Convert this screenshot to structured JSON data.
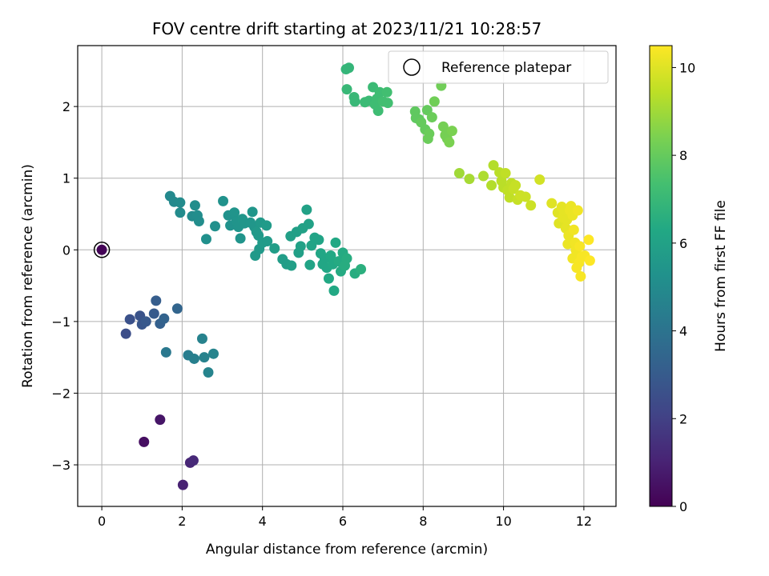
{
  "chart_data": {
    "type": "scatter",
    "title": "FOV centre drift starting at 2023/11/21 10:28:57",
    "xlabel": "Angular distance from reference (arcmin)",
    "ylabel": "Rotation from reference (arcmin)",
    "colorbar_label": "Hours from first FF file",
    "xlim": [
      -0.6,
      12.8
    ],
    "ylim": [
      -3.58,
      2.85
    ],
    "xticks": [
      0,
      2,
      4,
      6,
      8,
      10,
      12
    ],
    "yticks": [
      -3,
      -2,
      -1,
      0,
      1,
      2
    ],
    "colorbar_range": [
      0,
      10.5
    ],
    "colorbar_ticks": [
      0,
      2,
      4,
      6,
      8,
      10
    ],
    "colormap": "viridis",
    "grid": true,
    "legend": {
      "placement": "top-right",
      "entries": [
        "Reference platepar"
      ]
    },
    "reference_point": {
      "x": 0,
      "y": 0
    },
    "points": [
      {
        "x": 0.0,
        "y": 0.0,
        "c": 0.1
      },
      {
        "x": 1.05,
        "y": -2.68,
        "c": 0.4
      },
      {
        "x": 1.45,
        "y": -2.37,
        "c": 0.6
      },
      {
        "x": 2.02,
        "y": -3.28,
        "c": 1.0
      },
      {
        "x": 2.2,
        "y": -2.97,
        "c": 1.1
      },
      {
        "x": 2.28,
        "y": -2.94,
        "c": 1.2
      },
      {
        "x": 0.6,
        "y": -1.17,
        "c": 2.5
      },
      {
        "x": 0.7,
        "y": -0.97,
        "c": 2.6
      },
      {
        "x": 0.95,
        "y": -0.92,
        "c": 2.7
      },
      {
        "x": 1.0,
        "y": -1.04,
        "c": 2.8
      },
      {
        "x": 1.1,
        "y": -1.0,
        "c": 2.9
      },
      {
        "x": 1.3,
        "y": -0.89,
        "c": 3.0
      },
      {
        "x": 1.35,
        "y": -0.71,
        "c": 3.1
      },
      {
        "x": 1.45,
        "y": -1.03,
        "c": 3.2
      },
      {
        "x": 1.55,
        "y": -0.96,
        "c": 3.3
      },
      {
        "x": 1.88,
        "y": -0.82,
        "c": 3.4
      },
      {
        "x": 1.6,
        "y": -1.43,
        "c": 4.2
      },
      {
        "x": 2.15,
        "y": -1.47,
        "c": 4.4
      },
      {
        "x": 2.3,
        "y": -1.52,
        "c": 4.5
      },
      {
        "x": 2.5,
        "y": -1.24,
        "c": 4.6
      },
      {
        "x": 2.55,
        "y": -1.5,
        "c": 4.6
      },
      {
        "x": 2.65,
        "y": -1.71,
        "c": 4.7
      },
      {
        "x": 2.78,
        "y": -1.45,
        "c": 4.7
      },
      {
        "x": 1.7,
        "y": 0.75,
        "c": 4.9
      },
      {
        "x": 1.8,
        "y": 0.67,
        "c": 4.9
      },
      {
        "x": 1.95,
        "y": 0.66,
        "c": 5.0
      },
      {
        "x": 1.95,
        "y": 0.52,
        "c": 5.0
      },
      {
        "x": 2.25,
        "y": 0.47,
        "c": 5.0
      },
      {
        "x": 2.32,
        "y": 0.62,
        "c": 5.1
      },
      {
        "x": 2.38,
        "y": 0.48,
        "c": 5.1
      },
      {
        "x": 2.42,
        "y": 0.4,
        "c": 5.1
      },
      {
        "x": 2.6,
        "y": 0.15,
        "c": 5.2
      },
      {
        "x": 2.82,
        "y": 0.33,
        "c": 5.2
      },
      {
        "x": 3.02,
        "y": 0.68,
        "c": 5.3
      },
      {
        "x": 3.15,
        "y": 0.48,
        "c": 5.3
      },
      {
        "x": 3.2,
        "y": 0.34,
        "c": 5.3
      },
      {
        "x": 3.3,
        "y": 0.52,
        "c": 5.4
      },
      {
        "x": 3.35,
        "y": 0.4,
        "c": 5.4
      },
      {
        "x": 3.4,
        "y": 0.32,
        "c": 5.4
      },
      {
        "x": 3.45,
        "y": 0.16,
        "c": 5.4
      },
      {
        "x": 3.5,
        "y": 0.43,
        "c": 5.5
      },
      {
        "x": 3.55,
        "y": 0.37,
        "c": 5.5
      },
      {
        "x": 3.7,
        "y": 0.38,
        "c": 5.5
      },
      {
        "x": 3.75,
        "y": 0.53,
        "c": 5.5
      },
      {
        "x": 3.8,
        "y": 0.32,
        "c": 5.5
      },
      {
        "x": 3.85,
        "y": 0.25,
        "c": 5.6
      },
      {
        "x": 3.9,
        "y": 0.2,
        "c": 5.6
      },
      {
        "x": 3.95,
        "y": 0.38,
        "c": 5.6
      },
      {
        "x": 3.82,
        "y": -0.08,
        "c": 5.6
      },
      {
        "x": 3.92,
        "y": 0.01,
        "c": 5.6
      },
      {
        "x": 4.0,
        "y": 0.1,
        "c": 5.7
      },
      {
        "x": 4.1,
        "y": 0.34,
        "c": 5.7
      },
      {
        "x": 4.12,
        "y": 0.12,
        "c": 5.7
      },
      {
        "x": 4.3,
        "y": 0.02,
        "c": 5.8
      },
      {
        "x": 4.5,
        "y": -0.13,
        "c": 5.8
      },
      {
        "x": 4.6,
        "y": -0.2,
        "c": 5.8
      },
      {
        "x": 4.72,
        "y": -0.22,
        "c": 5.9
      },
      {
        "x": 4.7,
        "y": 0.19,
        "c": 5.9
      },
      {
        "x": 4.85,
        "y": 0.25,
        "c": 5.9
      },
      {
        "x": 4.9,
        "y": -0.04,
        "c": 5.9
      },
      {
        "x": 4.95,
        "y": 0.05,
        "c": 6.0
      },
      {
        "x": 5.0,
        "y": 0.3,
        "c": 6.0
      },
      {
        "x": 5.1,
        "y": 0.56,
        "c": 6.0
      },
      {
        "x": 5.15,
        "y": 0.36,
        "c": 6.0
      },
      {
        "x": 5.18,
        "y": -0.21,
        "c": 6.1
      },
      {
        "x": 5.22,
        "y": 0.06,
        "c": 6.1
      },
      {
        "x": 5.3,
        "y": 0.17,
        "c": 6.1
      },
      {
        "x": 5.4,
        "y": 0.14,
        "c": 6.1
      },
      {
        "x": 5.45,
        "y": -0.05,
        "c": 6.2
      },
      {
        "x": 5.5,
        "y": -0.2,
        "c": 6.2
      },
      {
        "x": 5.55,
        "y": -0.12,
        "c": 6.2
      },
      {
        "x": 5.6,
        "y": -0.25,
        "c": 6.2
      },
      {
        "x": 5.65,
        "y": -0.4,
        "c": 6.3
      },
      {
        "x": 5.7,
        "y": -0.08,
        "c": 6.3
      },
      {
        "x": 5.75,
        "y": -0.2,
        "c": 6.3
      },
      {
        "x": 5.78,
        "y": -0.57,
        "c": 6.3
      },
      {
        "x": 5.82,
        "y": 0.1,
        "c": 6.3
      },
      {
        "x": 5.9,
        "y": -0.16,
        "c": 6.4
      },
      {
        "x": 5.95,
        "y": -0.3,
        "c": 6.4
      },
      {
        "x": 6.0,
        "y": -0.04,
        "c": 6.4
      },
      {
        "x": 6.05,
        "y": -0.22,
        "c": 6.5
      },
      {
        "x": 6.1,
        "y": -0.12,
        "c": 6.5
      },
      {
        "x": 6.3,
        "y": -0.33,
        "c": 6.5
      },
      {
        "x": 6.45,
        "y": -0.27,
        "c": 6.6
      },
      {
        "x": 6.08,
        "y": 2.52,
        "c": 6.9
      },
      {
        "x": 6.15,
        "y": 2.54,
        "c": 6.9
      },
      {
        "x": 6.1,
        "y": 2.24,
        "c": 7.0
      },
      {
        "x": 6.28,
        "y": 2.13,
        "c": 7.0
      },
      {
        "x": 6.3,
        "y": 2.07,
        "c": 7.0
      },
      {
        "x": 6.55,
        "y": 2.06,
        "c": 7.1
      },
      {
        "x": 6.65,
        "y": 2.08,
        "c": 7.1
      },
      {
        "x": 6.75,
        "y": 2.27,
        "c": 7.1
      },
      {
        "x": 6.8,
        "y": 2.03,
        "c": 7.2
      },
      {
        "x": 6.85,
        "y": 2.11,
        "c": 7.2
      },
      {
        "x": 6.88,
        "y": 1.94,
        "c": 7.2
      },
      {
        "x": 6.92,
        "y": 2.2,
        "c": 7.2
      },
      {
        "x": 7.0,
        "y": 2.07,
        "c": 7.3
      },
      {
        "x": 7.1,
        "y": 2.2,
        "c": 7.3
      },
      {
        "x": 7.12,
        "y": 2.05,
        "c": 7.3
      },
      {
        "x": 7.8,
        "y": 1.93,
        "c": 7.9
      },
      {
        "x": 7.82,
        "y": 1.84,
        "c": 7.9
      },
      {
        "x": 7.9,
        "y": 1.82,
        "c": 7.9
      },
      {
        "x": 7.95,
        "y": 1.78,
        "c": 8.0
      },
      {
        "x": 8.05,
        "y": 1.68,
        "c": 8.0
      },
      {
        "x": 8.1,
        "y": 1.95,
        "c": 8.0
      },
      {
        "x": 8.12,
        "y": 1.55,
        "c": 8.1
      },
      {
        "x": 8.15,
        "y": 1.62,
        "c": 8.1
      },
      {
        "x": 8.22,
        "y": 1.85,
        "c": 8.1
      },
      {
        "x": 8.28,
        "y": 2.07,
        "c": 8.2
      },
      {
        "x": 8.45,
        "y": 2.29,
        "c": 8.2
      },
      {
        "x": 8.5,
        "y": 1.72,
        "c": 8.3
      },
      {
        "x": 8.55,
        "y": 1.6,
        "c": 8.3
      },
      {
        "x": 8.6,
        "y": 1.55,
        "c": 8.3
      },
      {
        "x": 8.65,
        "y": 1.5,
        "c": 8.4
      },
      {
        "x": 8.72,
        "y": 1.66,
        "c": 8.4
      },
      {
        "x": 8.9,
        "y": 1.07,
        "c": 9.0
      },
      {
        "x": 9.15,
        "y": 0.99,
        "c": 9.1
      },
      {
        "x": 9.5,
        "y": 1.03,
        "c": 9.2
      },
      {
        "x": 9.7,
        "y": 0.9,
        "c": 9.3
      },
      {
        "x": 9.75,
        "y": 1.18,
        "c": 9.3
      },
      {
        "x": 9.9,
        "y": 1.08,
        "c": 9.4
      },
      {
        "x": 9.95,
        "y": 0.96,
        "c": 9.4
      },
      {
        "x": 10.0,
        "y": 0.87,
        "c": 9.4
      },
      {
        "x": 10.05,
        "y": 1.07,
        "c": 9.5
      },
      {
        "x": 10.1,
        "y": 0.83,
        "c": 9.5
      },
      {
        "x": 10.15,
        "y": 0.73,
        "c": 9.5
      },
      {
        "x": 10.2,
        "y": 0.93,
        "c": 9.5
      },
      {
        "x": 10.25,
        "y": 0.85,
        "c": 9.6
      },
      {
        "x": 10.3,
        "y": 0.9,
        "c": 9.6
      },
      {
        "x": 10.35,
        "y": 0.7,
        "c": 9.6
      },
      {
        "x": 10.42,
        "y": 0.76,
        "c": 9.7
      },
      {
        "x": 10.55,
        "y": 0.74,
        "c": 9.7
      },
      {
        "x": 10.68,
        "y": 0.62,
        "c": 9.7
      },
      {
        "x": 10.9,
        "y": 0.98,
        "c": 9.8
      },
      {
        "x": 11.2,
        "y": 0.65,
        "c": 10.0
      },
      {
        "x": 11.35,
        "y": 0.52,
        "c": 10.0
      },
      {
        "x": 11.38,
        "y": 0.37,
        "c": 10.0
      },
      {
        "x": 11.45,
        "y": 0.6,
        "c": 10.1
      },
      {
        "x": 11.48,
        "y": 0.45,
        "c": 10.1
      },
      {
        "x": 11.5,
        "y": 0.55,
        "c": 10.1
      },
      {
        "x": 11.55,
        "y": 0.3,
        "c": 10.1
      },
      {
        "x": 11.58,
        "y": 0.42,
        "c": 10.1
      },
      {
        "x": 11.62,
        "y": 0.2,
        "c": 10.2
      },
      {
        "x": 11.65,
        "y": 0.55,
        "c": 10.2
      },
      {
        "x": 11.68,
        "y": 0.61,
        "c": 10.2
      },
      {
        "x": 11.6,
        "y": 0.08,
        "c": 10.2
      },
      {
        "x": 11.72,
        "y": 0.48,
        "c": 10.2
      },
      {
        "x": 11.75,
        "y": 0.28,
        "c": 10.3
      },
      {
        "x": 11.78,
        "y": 0.1,
        "c": 10.3
      },
      {
        "x": 11.8,
        "y": 0.0,
        "c": 10.3
      },
      {
        "x": 11.72,
        "y": -0.12,
        "c": 10.3
      },
      {
        "x": 11.82,
        "y": -0.05,
        "c": 10.3
      },
      {
        "x": 11.85,
        "y": 0.55,
        "c": 10.3
      },
      {
        "x": 11.88,
        "y": -0.18,
        "c": 10.4
      },
      {
        "x": 11.82,
        "y": -0.25,
        "c": 10.4
      },
      {
        "x": 11.9,
        "y": 0.05,
        "c": 10.4
      },
      {
        "x": 11.95,
        "y": -0.1,
        "c": 10.4
      },
      {
        "x": 11.92,
        "y": -0.37,
        "c": 10.4
      },
      {
        "x": 12.02,
        "y": -0.08,
        "c": 10.4
      },
      {
        "x": 12.12,
        "y": 0.14,
        "c": 10.5
      },
      {
        "x": 12.15,
        "y": -0.15,
        "c": 10.5
      }
    ]
  }
}
